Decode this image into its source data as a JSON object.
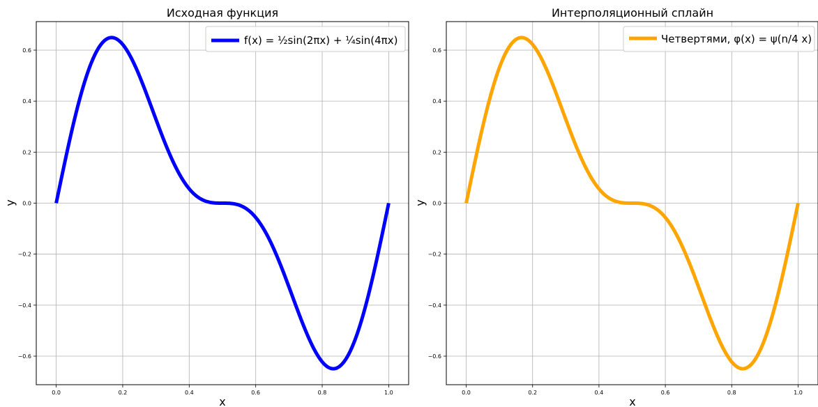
{
  "chart_data": [
    {
      "type": "line",
      "title": "Исходная функция",
      "xlabel": "x",
      "ylabel": "y",
      "xlim": [
        -0.06,
        1.06
      ],
      "ylim": [
        -0.712,
        0.712
      ],
      "xticks": [
        "0.0",
        "0.2",
        "0.4",
        "0.6",
        "0.8",
        "1.0"
      ],
      "yticks": [
        "−0.6",
        "−0.4",
        "−0.2",
        "0.0",
        "0.2",
        "0.4",
        "0.6"
      ],
      "grid": true,
      "legend_position": "top-right",
      "series": [
        {
          "name": "f(x) = ½sin(2πx) + ¼sin(4πx)",
          "color": "#0000ff",
          "function": "0.5*sin(2*pi*x) + 0.25*sin(4*pi*x)",
          "x": [
            0.0,
            0.05,
            0.1,
            0.15,
            0.1667,
            0.2,
            0.25,
            0.3,
            0.35,
            0.4,
            0.45,
            0.5,
            0.55,
            0.6,
            0.65,
            0.7,
            0.75,
            0.8,
            0.8333,
            0.85,
            0.9,
            0.95,
            1.0
          ],
          "y": [
            0.0,
            0.301,
            0.531,
            0.642,
            0.65,
            0.625,
            0.5,
            0.329,
            0.163,
            0.055,
            0.009,
            0.0,
            -0.009,
            -0.055,
            -0.163,
            -0.329,
            -0.5,
            -0.625,
            -0.65,
            -0.642,
            -0.531,
            -0.301,
            0.0
          ]
        }
      ]
    },
    {
      "type": "line",
      "title": "Интерполяционный сплайн",
      "xlabel": "x",
      "ylabel": "y",
      "xlim": [
        -0.06,
        1.06
      ],
      "ylim": [
        -0.712,
        0.712
      ],
      "xticks": [
        "0.0",
        "0.2",
        "0.4",
        "0.6",
        "0.8",
        "1.0"
      ],
      "yticks": [
        "−0.6",
        "−0.4",
        "−0.2",
        "0.0",
        "0.2",
        "0.4",
        "0.6"
      ],
      "grid": true,
      "legend_position": "top-right",
      "series": [
        {
          "name": "Четвертями, φ(x) = ψ(n/4 x)",
          "color": "#ffa500",
          "x": [
            0.0,
            0.05,
            0.1,
            0.15,
            0.1667,
            0.2,
            0.25,
            0.3,
            0.35,
            0.4,
            0.45,
            0.5,
            0.55,
            0.6,
            0.65,
            0.7,
            0.75,
            0.8,
            0.8333,
            0.85,
            0.9,
            0.95,
            1.0
          ],
          "y": [
            0.0,
            0.301,
            0.531,
            0.642,
            0.65,
            0.625,
            0.5,
            0.329,
            0.163,
            0.055,
            0.009,
            0.0,
            -0.009,
            -0.055,
            -0.163,
            -0.329,
            -0.5,
            -0.625,
            -0.65,
            -0.642,
            -0.531,
            -0.301,
            0.0
          ]
        }
      ]
    }
  ]
}
